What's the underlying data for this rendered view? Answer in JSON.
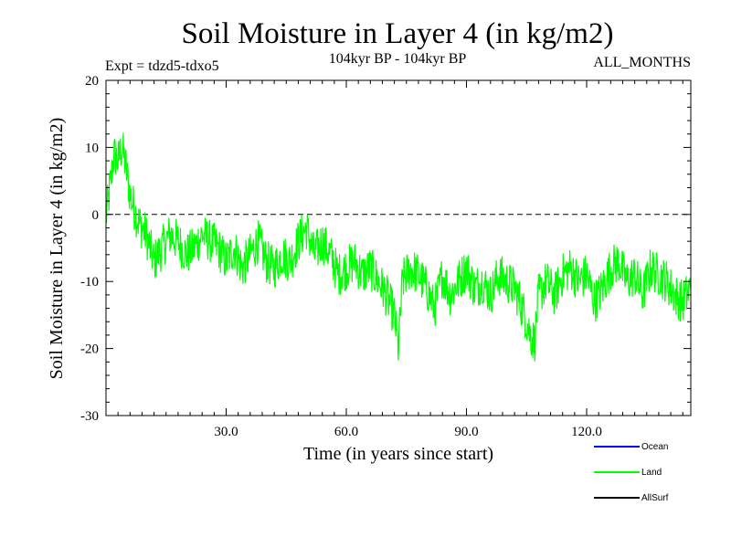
{
  "colors": {
    "ocean": "#0000ff",
    "land": "#00ff00",
    "allsurf": "#000000",
    "axis": "#000000",
    "zero_line": "#000000"
  },
  "chart_data": {
    "type": "line",
    "title": "Soil Moisture in Layer 4 (in kg/m2)",
    "subtitle_left": "Expt = tdzd5-tdxo5",
    "subtitle_center": "104kyr BP - 104kyr BP",
    "subtitle_right": "ALL_MONTHS",
    "xlabel": "Time (in years since start)",
    "ylabel": "Soil Moisture in Layer 4 (in kg/m2)",
    "xlim": [
      0,
      146
    ],
    "ylim": [
      -30,
      20
    ],
    "xticks": [
      30,
      60,
      90,
      120
    ],
    "xtick_labels": [
      "30.0",
      "60.0",
      "90.0",
      "120.0"
    ],
    "yticks": [
      -30,
      -20,
      -10,
      0,
      10,
      20
    ],
    "ytick_labels": [
      "-30",
      "-20",
      "-10",
      "0",
      "10",
      "20"
    ],
    "zero_line": true,
    "legend": [
      "Ocean",
      "Land",
      "AllSurf"
    ],
    "series": [
      {
        "name": "Land",
        "color": "#00ff00",
        "x": [
          0,
          1,
          2,
          3,
          4,
          5,
          6,
          7,
          8,
          9,
          10,
          12,
          14,
          16,
          18,
          20,
          22,
          24,
          26,
          28,
          30,
          32,
          34,
          36,
          38,
          40,
          42,
          44,
          46,
          48,
          50,
          52,
          54,
          56,
          58,
          60,
          62,
          64,
          66,
          68,
          70,
          72,
          73,
          74,
          76,
          78,
          80,
          82,
          84,
          86,
          88,
          90,
          92,
          94,
          96,
          98,
          100,
          102,
          104,
          106,
          107,
          108,
          110,
          112,
          114,
          116,
          118,
          120,
          122,
          124,
          126,
          128,
          130,
          132,
          134,
          136,
          138,
          140,
          142,
          144,
          146
        ],
        "values": [
          -0.5,
          4,
          9,
          8,
          10,
          7,
          3,
          1,
          -1,
          -2,
          -3,
          -7,
          -5,
          -3,
          -4,
          -6,
          -5,
          -3,
          -4,
          -5,
          -7,
          -5,
          -8,
          -6,
          -4,
          -7,
          -8,
          -6,
          -7,
          -4,
          -2,
          -6,
          -4,
          -6,
          -9,
          -8,
          -7,
          -9,
          -8,
          -10,
          -12,
          -15,
          -20,
          -10,
          -8,
          -9,
          -11,
          -14,
          -9,
          -12,
          -10,
          -8,
          -11,
          -10,
          -12,
          -9,
          -10,
          -11,
          -14,
          -18,
          -19,
          -12,
          -10,
          -12,
          -9,
          -8,
          -10,
          -9,
          -13,
          -11,
          -8,
          -7,
          -10,
          -9,
          -12,
          -8,
          -9,
          -10,
          -12,
          -13,
          -11
        ]
      }
    ]
  }
}
